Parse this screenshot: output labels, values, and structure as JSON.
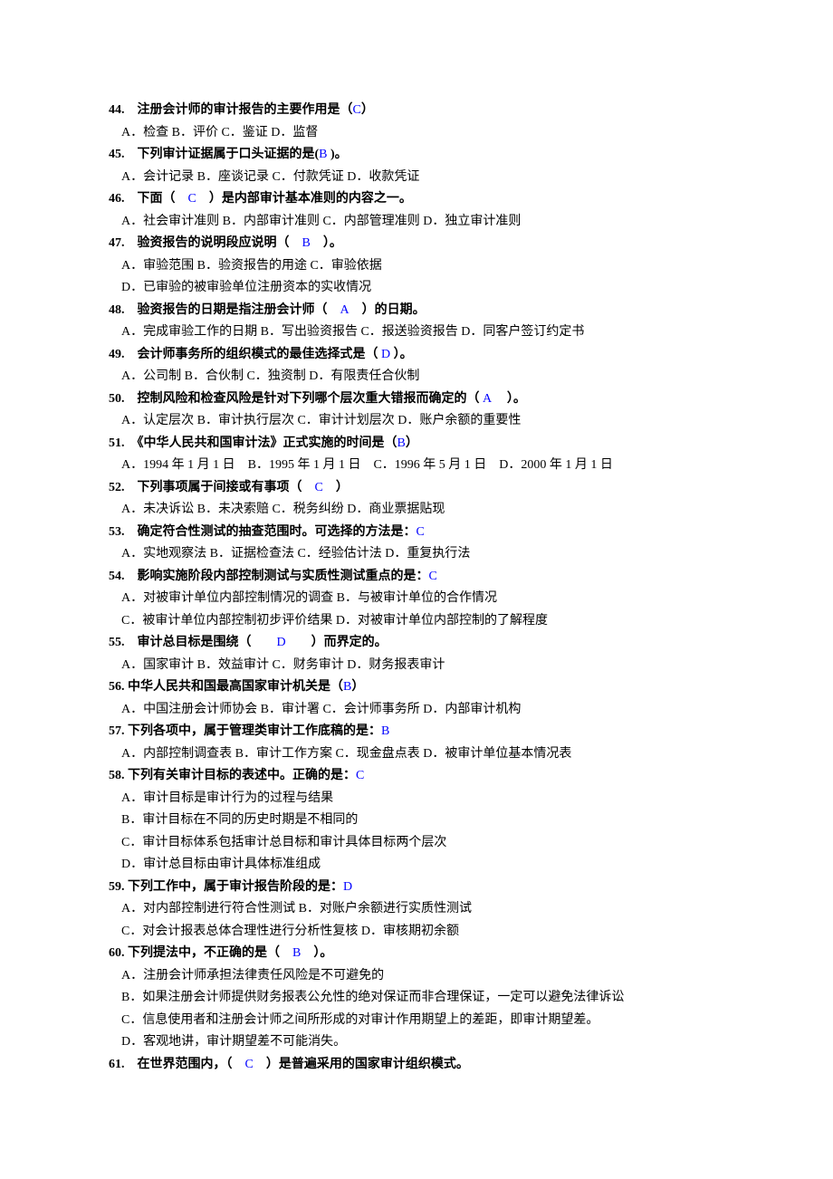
{
  "questions": [
    {
      "num": "44.",
      "stem_pre": "　注册会计师的审计报告的主要作用是（",
      "answer": "C",
      "stem_post": "）",
      "opts": [
        "A．检查 B．评价 C．鉴证 D．监督"
      ]
    },
    {
      "num": "45.",
      "stem_pre": "　下列审计证据属于口头证据的是(",
      "answer": "B",
      "stem_post": " )。",
      "opts": [
        "A．会计记录 B．座谈记录 C．付款凭证 D．收款凭证"
      ]
    },
    {
      "num": "46.",
      "stem_pre": "　下面（　",
      "answer": "C",
      "stem_post": "　）是内部审计基本准则的内容之一。",
      "opts": [
        "A．社会审计准则 B．内部审计准则 C．内部管理准则 D．独立审计准则"
      ]
    },
    {
      "num": "47.",
      "stem_pre": "　验资报告的说明段应说明（　",
      "answer": "B",
      "stem_post": "　）。",
      "opts": [
        "A．审验范围 B．验资报告的用途 C．审验依据",
        "D．已审验的被审验单位注册资本的实收情况"
      ]
    },
    {
      "num": "48.",
      "stem_pre": "　验资报告的日期是指注册会计师（　",
      "answer": "A",
      "stem_post": "　）的日期。",
      "opts": [
        "A．完成审验工作的日期 B．写出验资报告 C．报送验资报告 D．同客户签订约定书"
      ]
    },
    {
      "num": "49.",
      "stem_pre": "　会计师事务所的组织模式的最佳选择式是（",
      "answer": " D ",
      "stem_post": "）。",
      "opts": [
        "A．公司制 B．合伙制 C．独资制 D．有限责任合伙制"
      ]
    },
    {
      "num": "50.",
      "stem_pre": "　控制风险和检查风险是针对下列哪个层次重大错报而确定的（",
      "answer": " A ",
      "stem_post": "　）。",
      "opts": [
        "A．认定层次 B．审计执行层次 C．审计计划层次 D．账户余额的重要性"
      ]
    },
    {
      "num": "51.",
      "stem_pre": "　《中华人民共和国审计法》正式实施的时间是（",
      "answer": "B",
      "stem_post": "）",
      "opts": [
        "A．1994 年 1 月 1 日　B．1995 年 1 月 1 日　C．1996 年 5 月 1 日　D．2000 年 1 月 1 日"
      ]
    },
    {
      "num": "52.",
      "stem_pre": "　下列事项属于间接或有事项（　",
      "answer": "C",
      "stem_post": "　）",
      "opts": [
        "A．未决诉讼 B．未决索赔 C．税务纠纷 D．商业票据贴现"
      ]
    },
    {
      "num": "53.",
      "stem_pre": "　确定符合性测试的抽查范围时。可选择的方法是：",
      "answer": "C",
      "stem_post": "",
      "opts": [
        "A．实地观察法 B．证据检查法 C．经验估计法 D．重复执行法"
      ]
    },
    {
      "num": "54.",
      "stem_pre": "　影响实施阶段内部控制测试与实质性测试重点的是：",
      "answer": "C",
      "stem_post": "",
      "opts": [
        "A．对被审计单位内部控制情况的调查 B．与被审计单位的合作情况",
        "C．被审计单位内部控制初步评价结果 D．对被审计单位内部控制的了解程度"
      ]
    },
    {
      "num": "55.",
      "stem_pre": "　审计总目标是围绕（　　",
      "answer": "D",
      "stem_post": "　　）而界定的。",
      "opts": [
        "A．国家审计 B．效益审计 C．财务审计 D．财务报表审计"
      ]
    },
    {
      "num": "56.",
      "stem_pre": " 中华人民共和国最高国家审计机关是（",
      "answer": "B",
      "stem_post": "）",
      "opts": [
        "A．中国注册会计师协会 B．审计署 C．会计师事务所 D．内部审计机构"
      ]
    },
    {
      "num": "57.",
      "stem_pre": " 下列各项中，属于管理类审计工作底稿的是：",
      "answer": "B",
      "stem_post": "",
      "opts": [
        "A．内部控制调查表 B．审计工作方案 C．现金盘点表 D．被审计单位基本情况表"
      ]
    },
    {
      "num": "58.",
      "stem_pre": " 下列有关审计目标的表述中。正确的是：",
      "answer": "C",
      "stem_post": "",
      "opts": [
        "A．审计目标是审计行为的过程与结果",
        "B．审计目标在不同的历史时期是不相同的",
        "C．审计目标体系包括审计总目标和审计具体目标两个层次",
        "D．审计总目标由审计具体标准组成"
      ]
    },
    {
      "num": "59.",
      "stem_pre": " 下列工作中，属于审计报告阶段的是：",
      "answer": "D",
      "stem_post": "",
      "opts": [
        "A．对内部控制进行符合性测试 B．对账户余额进行实质性测试",
        "C．对会计报表总体合理性进行分析性复核 D．审核期初余额"
      ]
    },
    {
      "num": "60.",
      "stem_pre": " 下列提法中，不正确的是（　",
      "answer": "B",
      "stem_post": "　）。",
      "opts": [
        "A．注册会计师承担法律责任风险是不可避免的",
        "B．如果注册会计师提供财务报表公允性的绝对保证而非合理保证，一定可以避免法律诉讼",
        "C．信息使用者和注册会计师之间所形成的对审计作用期望上的差距，即审计期望差。",
        "D．客观地讲，审计期望差不可能消失。"
      ]
    },
    {
      "num": "61.",
      "stem_pre": "　在世界范围内，（　",
      "answer": "C",
      "stem_post": "　）是普遍采用的国家审计组织模式。",
      "opts": []
    }
  ]
}
